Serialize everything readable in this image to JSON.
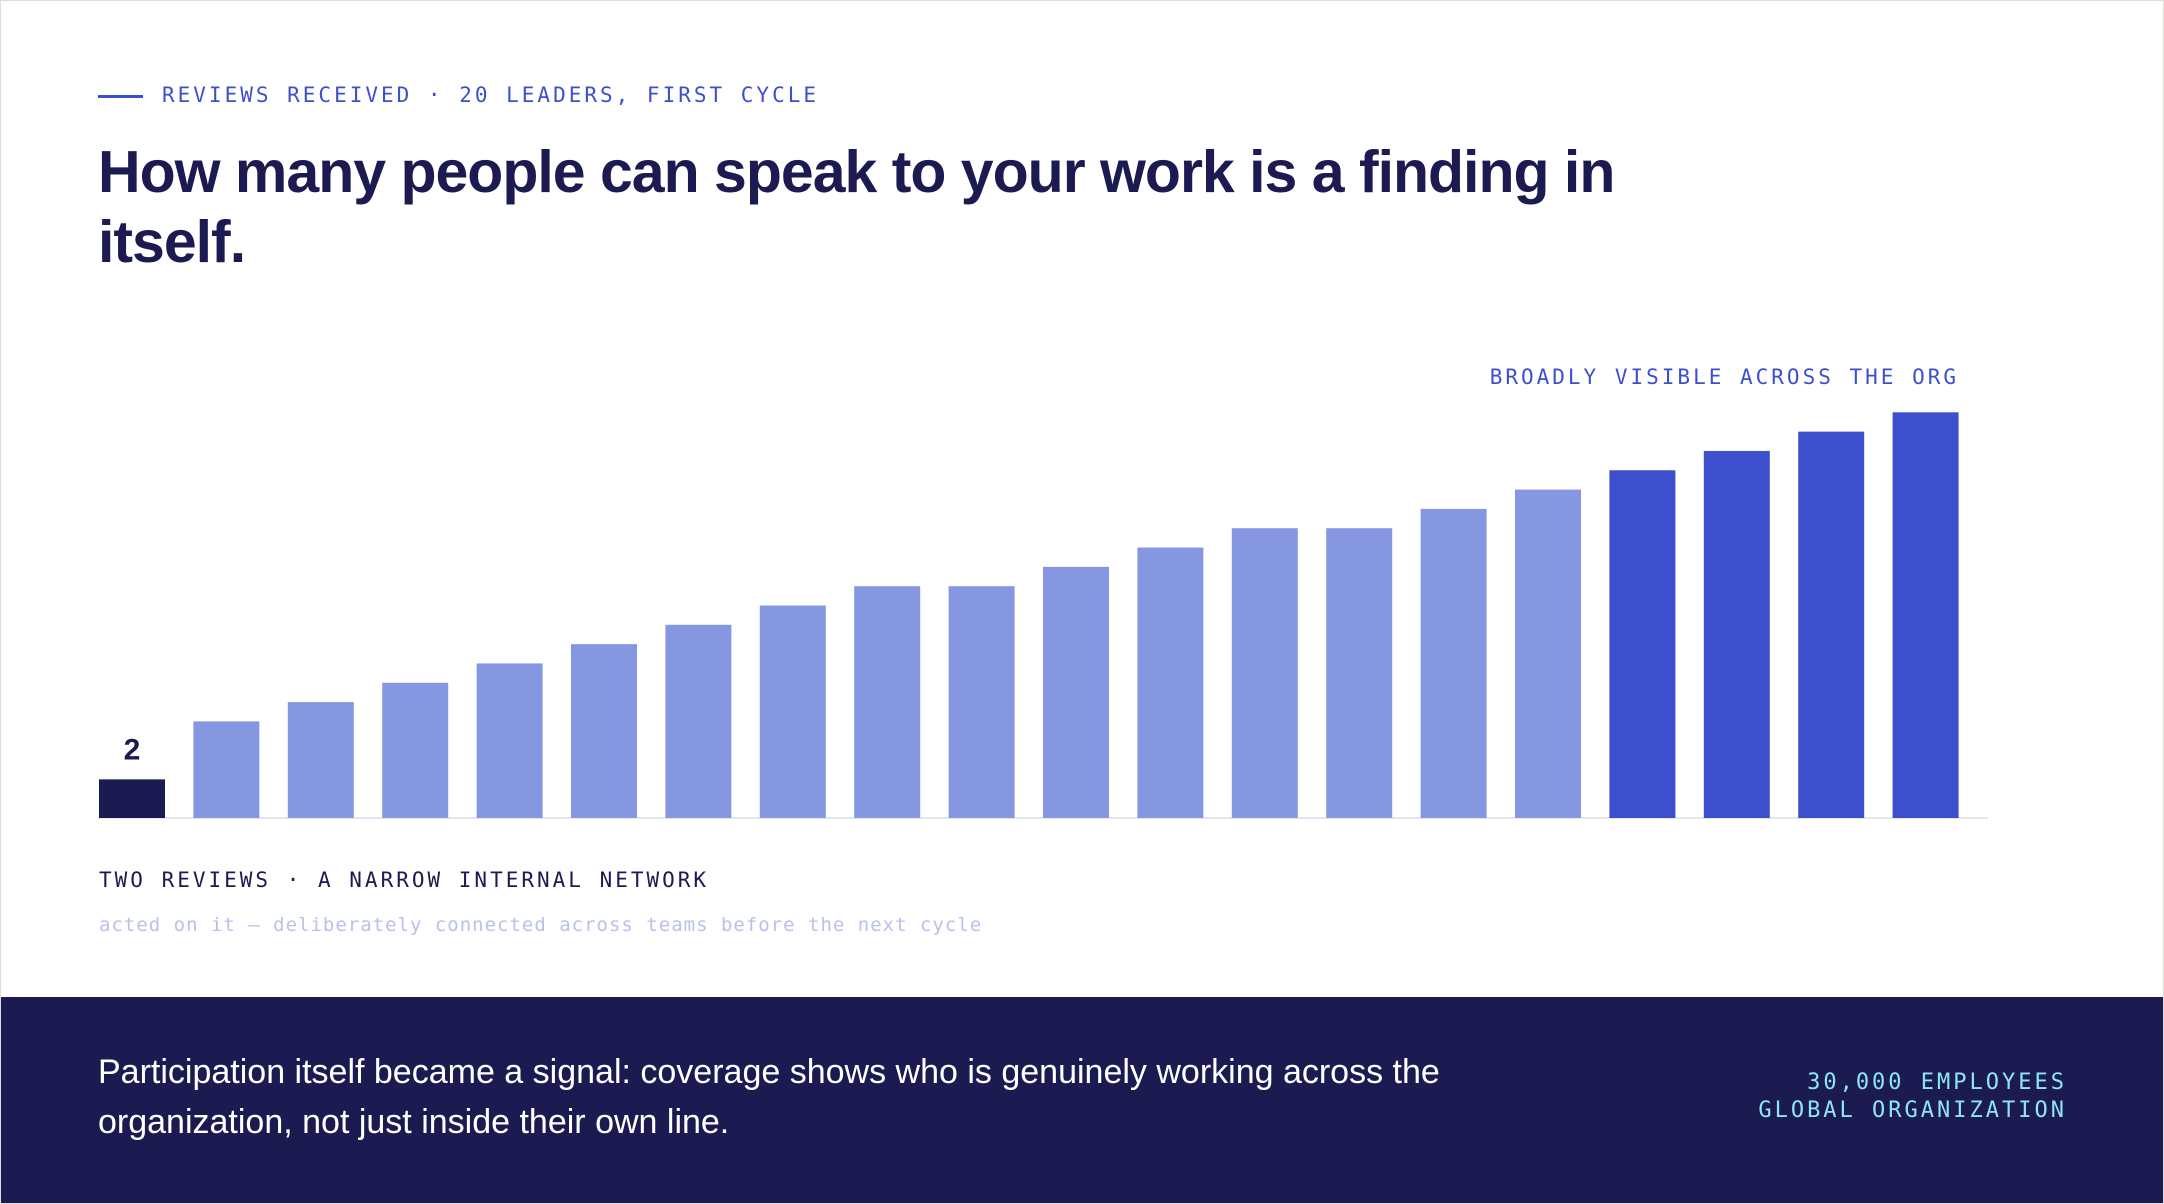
{
  "chart_data": {
    "type": "bar",
    "subtitle": "REVIEWS RECEIVED · 20 LEADERS, FIRST CYCLE",
    "title": "How many people can speak to your work is a finding in itself.",
    "annotation": "BROADLY VISIBLE ACROSS THE ORG",
    "caption": "TWO REVIEWS · A NARROW INTERNAL NETWORK",
    "note": "acted on it — deliberately connected across teams before the next cycle",
    "values": [
      2,
      5,
      6,
      7,
      8,
      9,
      10,
      11,
      12,
      12,
      13,
      14,
      15,
      15,
      16,
      17,
      18,
      19,
      20,
      21
    ],
    "colors": [
      "#1b1b52",
      "#8597e0",
      "#8597e0",
      "#8597e0",
      "#8597e0",
      "#8597e0",
      "#8597e0",
      "#8597e0",
      "#8597e0",
      "#8597e0",
      "#8597e0",
      "#8597e0",
      "#8597e0",
      "#8597e0",
      "#8597e0",
      "#8597e0",
      "#3d4fcc",
      "#3d4fcc",
      "#3d4fcc",
      "#3d4fcc"
    ],
    "ylim": [
      0,
      22
    ]
  },
  "footer": {
    "text": "Participation itself became a signal: coverage shows who is genuinely working across the organization, not just inside their own line.",
    "stats": [
      "30,000 EMPLOYEES",
      "GLOBAL ORGANIZATION"
    ]
  }
}
